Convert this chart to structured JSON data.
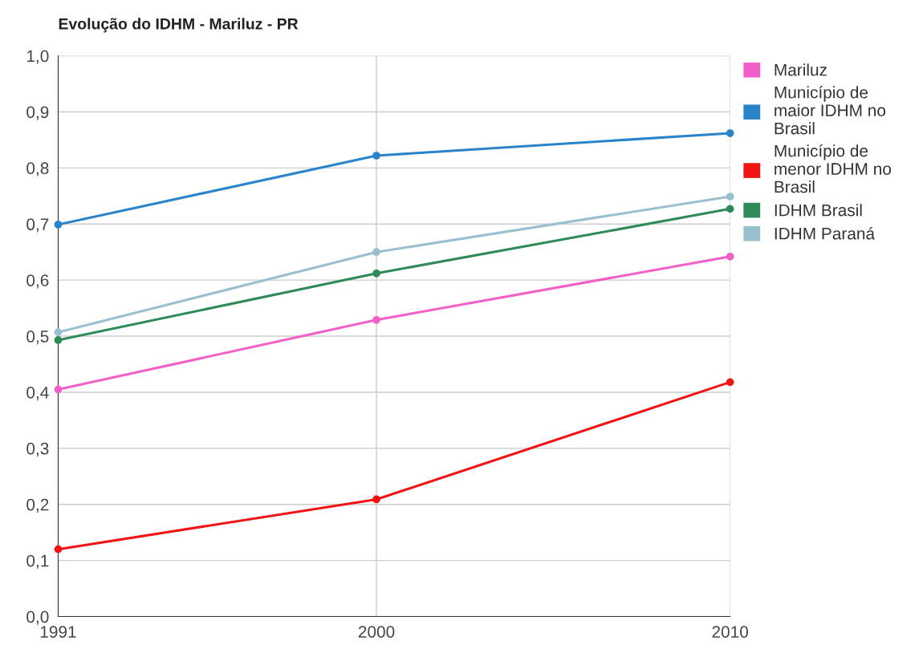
{
  "chart_data": {
    "type": "line",
    "title": "Evolução do IDHM - Mariluz - PR",
    "x": [
      1991,
      2000,
      2010
    ],
    "series": [
      {
        "name": "Mariluz",
        "color": "#f25fc8",
        "values": [
          0.405,
          0.529,
          0.642
        ]
      },
      {
        "name": "Município de maior IDHM no Brasil",
        "color": "#2a84c9",
        "values": [
          0.699,
          0.822,
          0.862
        ]
      },
      {
        "name": "Município de menor IDHM no Brasil",
        "color": "#f01414",
        "values": [
          0.12,
          0.209,
          0.418
        ]
      },
      {
        "name": "IDHM Brasil",
        "color": "#2e8b57",
        "values": [
          0.493,
          0.612,
          0.727
        ]
      },
      {
        "name": "IDHM Paraná",
        "color": "#9ac0d0",
        "values": [
          0.507,
          0.65,
          0.749
        ]
      }
    ],
    "xlim": [
      1991,
      2010
    ],
    "xticks": [
      1991,
      2000,
      2010
    ],
    "ylim": [
      0,
      1
    ],
    "yticks": [
      {
        "value": 0,
        "label": "0,0"
      },
      {
        "value": 0.1,
        "label": "0,1"
      },
      {
        "value": 0.2,
        "label": "0,2"
      },
      {
        "value": 0.3,
        "label": "0,3"
      },
      {
        "value": 0.4,
        "label": "0,4"
      },
      {
        "value": 0.5,
        "label": "0,5"
      },
      {
        "value": 0.6,
        "label": "0,6"
      },
      {
        "value": 0.7,
        "label": "0,7"
      },
      {
        "value": 0.8,
        "label": "0,8"
      },
      {
        "value": 0.9,
        "label": "0,9"
      },
      {
        "value": 1,
        "label": "1,0"
      }
    ],
    "grid": true,
    "legend": "right",
    "marker": "circle"
  }
}
